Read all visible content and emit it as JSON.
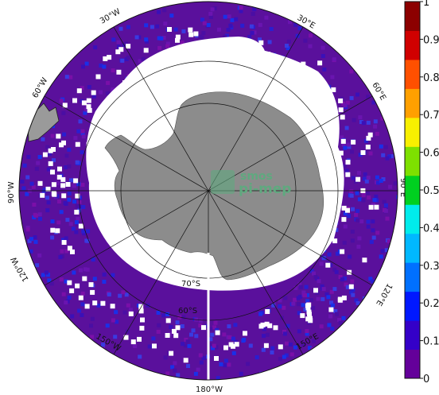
{
  "map": {
    "projection": "south-polar-stereographic",
    "ocean_base_color": "#5a109c",
    "land_color": "#8c8c8c",
    "no_data_color": "#ffffff",
    "longitude_labels": [
      "30°W",
      "30°E",
      "60°W",
      "60°E",
      "90°W",
      "90°E",
      "120°W",
      "120°E",
      "150°W",
      "150°E",
      "180°W"
    ],
    "latitude_labels": [
      "60°S",
      "70°S"
    ]
  },
  "colorbar": {
    "ticks": [
      "0",
      "0.1",
      "0.2",
      "0.3",
      "0.4",
      "0.5",
      "0.6",
      "0.7",
      "0.8",
      "0.9",
      "1"
    ],
    "colors": [
      "#64009a",
      "#3400c8",
      "#0018ff",
      "#0070ff",
      "#00b8ff",
      "#00ecec",
      "#00d020",
      "#7ee000",
      "#f8f000",
      "#ffa000",
      "#ff5000",
      "#d00000",
      "#8c0000"
    ],
    "range": [
      0,
      1
    ]
  },
  "watermark": {
    "line1": "smos",
    "line2": "pi-mep"
  }
}
